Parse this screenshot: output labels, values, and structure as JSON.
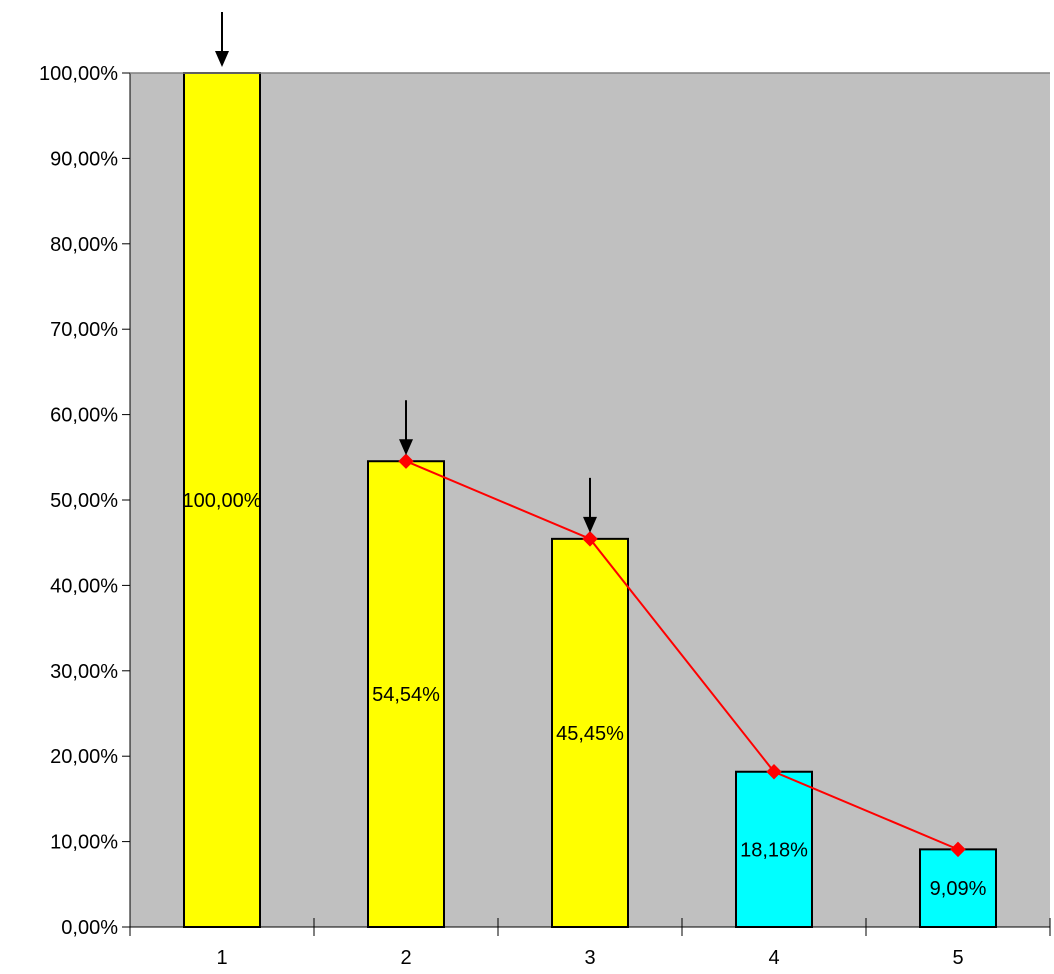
{
  "chart_data": {
    "type": "bar",
    "categories": [
      "1",
      "2",
      "3",
      "4",
      "5"
    ],
    "values": [
      100.0,
      54.54,
      45.45,
      18.18,
      9.09
    ],
    "data_labels": [
      "100,00%",
      "54,54%",
      "45,45%",
      "18,18%",
      "9,09%"
    ],
    "bar_colors": [
      "#ffff00",
      "#ffff00",
      "#ffff00",
      "#00ffff",
      "#00ffff"
    ],
    "line_series": {
      "categories": [
        "2",
        "3",
        "4",
        "5"
      ],
      "values": [
        54.54,
        45.45,
        18.18,
        9.09
      ],
      "color": "#ff0000"
    },
    "arrow_markers": [
      "1",
      "2",
      "3"
    ],
    "ylim": [
      0,
      100
    ],
    "yticks": [
      0,
      10,
      20,
      30,
      40,
      50,
      60,
      70,
      80,
      90,
      100
    ],
    "ytick_labels": [
      "0,00%",
      "10,00%",
      "20,00%",
      "30,00%",
      "40,00%",
      "50,00%",
      "60,00%",
      "70,00%",
      "80,00%",
      "90,00%",
      "100,00%"
    ],
    "plot_background": "#c0c0c0",
    "grid": false,
    "legend": "none"
  }
}
